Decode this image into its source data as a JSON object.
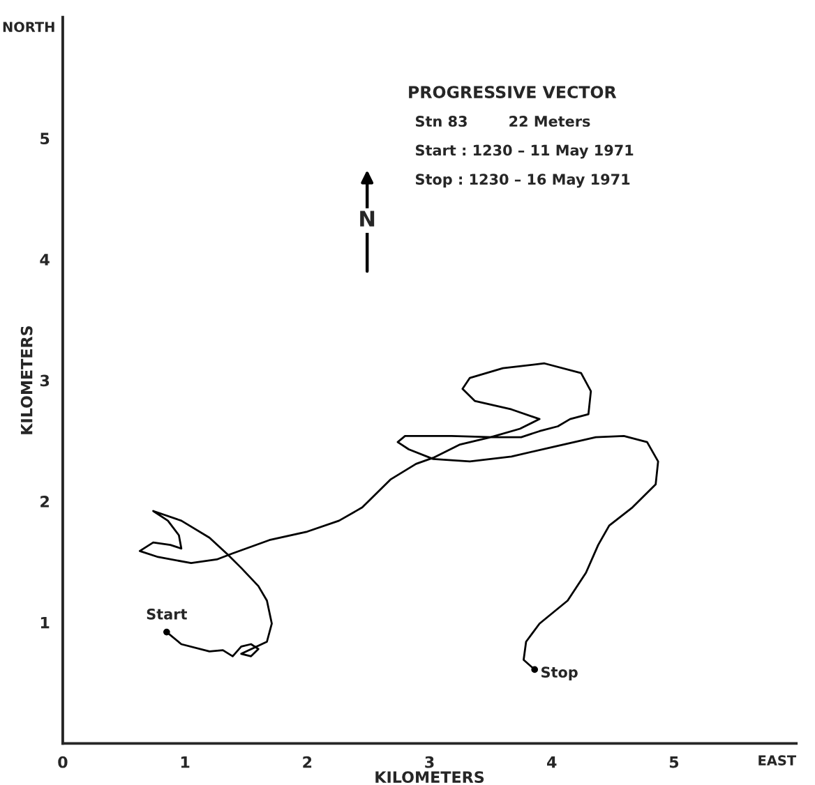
{
  "chart_data": {
    "type": "line",
    "xlabel": "KILOMETERS",
    "ylabel": "KILOMETERS",
    "xlim": [
      0,
      6
    ],
    "ylim": [
      0,
      6
    ],
    "xticks": [
      0,
      1,
      2,
      3,
      4,
      5
    ],
    "yticks": [
      1,
      2,
      3,
      4,
      5
    ],
    "grid": false,
    "legend": false,
    "marker": "none",
    "line_style": "solid",
    "series": [
      {
        "color": "#000000",
        "x": [
          0.85,
          0.97,
          1.2,
          1.31,
          1.39,
          1.46,
          1.54,
          1.6,
          1.54,
          1.46,
          1.67,
          1.71,
          1.67,
          1.6,
          1.46,
          1.35,
          1.2,
          0.97,
          0.74,
          0.86,
          0.95,
          0.97,
          0.88,
          0.74,
          0.63,
          0.78,
          1.05,
          1.26,
          1.39,
          1.69,
          2.0,
          2.26,
          2.45,
          2.68,
          2.89,
          3.03,
          3.25,
          3.5,
          3.74,
          3.9,
          3.67,
          3.37,
          3.27,
          3.33,
          3.6,
          3.94,
          4.24,
          4.32,
          4.3,
          4.15,
          4.05,
          3.9,
          3.75,
          3.52,
          3.18,
          2.8,
          2.74,
          2.83,
          3.03,
          3.33,
          3.67,
          4.01,
          4.36,
          4.59,
          4.78,
          4.87,
          4.85,
          4.66,
          4.47,
          4.38,
          4.28,
          4.13,
          3.9,
          3.79,
          3.77,
          3.86
        ],
        "values": [
          0.92,
          0.82,
          0.76,
          0.77,
          0.72,
          0.8,
          0.82,
          0.78,
          0.72,
          0.74,
          0.84,
          0.99,
          1.18,
          1.3,
          1.45,
          1.56,
          1.7,
          1.84,
          1.92,
          1.84,
          1.72,
          1.61,
          1.64,
          1.66,
          1.59,
          1.54,
          1.49,
          1.52,
          1.57,
          1.68,
          1.75,
          1.84,
          1.95,
          2.18,
          2.31,
          2.36,
          2.47,
          2.53,
          2.6,
          2.68,
          2.76,
          2.83,
          2.93,
          3.02,
          3.1,
          3.14,
          3.06,
          2.91,
          2.72,
          2.68,
          2.62,
          2.58,
          2.53,
          2.53,
          2.54,
          2.54,
          2.49,
          2.43,
          2.35,
          2.33,
          2.37,
          2.45,
          2.53,
          2.54,
          2.49,
          2.33,
          2.14,
          1.95,
          1.8,
          1.64,
          1.41,
          1.18,
          0.99,
          0.84,
          0.69,
          0.61
        ]
      }
    ],
    "annotations": [
      {
        "text": "Start",
        "x": 0.85,
        "y": 0.92
      },
      {
        "text": "Stop",
        "x": 3.86,
        "y": 0.61
      },
      "PROGRESSIVE VECTOR",
      "Stn 83        22 Meters",
      "Start : 1230 – 11 May 1971",
      "Stop : 1230 – 16 May 1971",
      "N",
      "NORTH",
      "EAST"
    ]
  }
}
